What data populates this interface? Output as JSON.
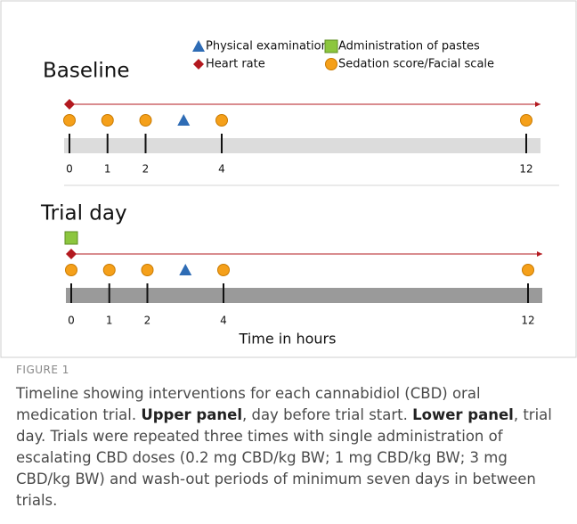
{
  "legend": [
    {
      "label": "Physical examination",
      "shape": "triangle",
      "color": "#2e6cb5"
    },
    {
      "label": "Heart rate",
      "shape": "diamond",
      "color": "#b3191f"
    },
    {
      "label": "Administration of pastes",
      "shape": "square",
      "color": "#8cc63e"
    },
    {
      "label": "Sedation score/Facial scale",
      "shape": "circle",
      "color": "#f5a01a"
    }
  ],
  "panels": [
    {
      "title": "Baseline",
      "bar_color": "#dcdcdc",
      "xlim": [
        0,
        12
      ],
      "ticks": [
        0,
        1,
        2,
        4,
        12
      ],
      "heart_rate_span": [
        0,
        12
      ],
      "events": [
        {
          "shape": "circle",
          "hours": [
            0,
            1,
            2,
            4,
            12
          ]
        },
        {
          "shape": "triangle",
          "hours": [
            3
          ]
        }
      ]
    },
    {
      "title": "Trial day",
      "bar_color": "#9a9a9a",
      "xlim": [
        0,
        12
      ],
      "ticks": [
        0,
        1,
        2,
        4,
        12
      ],
      "heart_rate_span": [
        0,
        12
      ],
      "events": [
        {
          "shape": "square",
          "hours": [
            0
          ]
        },
        {
          "shape": "circle",
          "hours": [
            0,
            1,
            2,
            4,
            12
          ]
        },
        {
          "shape": "triangle",
          "hours": [
            3
          ]
        }
      ]
    }
  ],
  "x_label": "Time in hours",
  "caption": {
    "label": "FIGURE 1",
    "segments": [
      {
        "text": "Timeline showing interventions for each cannabidiol (CBD) oral medication trial. ",
        "bold": false
      },
      {
        "text": "Upper panel",
        "bold": true
      },
      {
        "text": ", day before trial start. ",
        "bold": false
      },
      {
        "text": "Lower panel",
        "bold": true
      },
      {
        "text": ", trial day. Trials were repeated three times with single administration of escalating CBD doses (0.2 mg CBD/kg BW; 1 mg CBD/kg BW; 3 mg CBD/kg BW) and wash-out periods of minimum seven days in between trials.",
        "bold": false
      }
    ]
  }
}
